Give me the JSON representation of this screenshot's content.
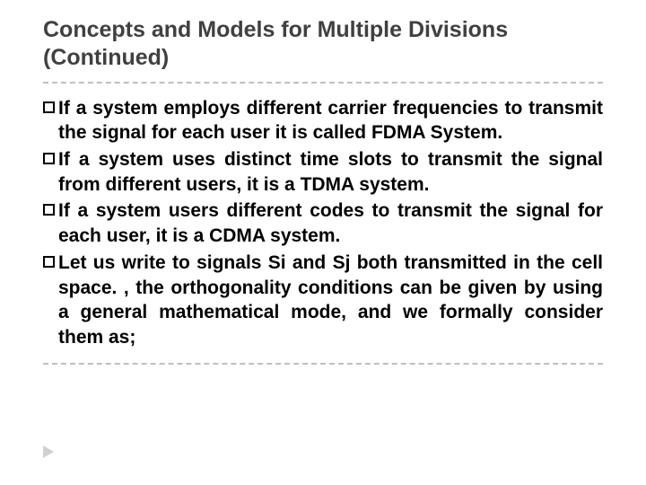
{
  "slide": {
    "title": "Concepts and Models for Multiple Divisions (Continued)",
    "title_color": "#404040",
    "title_fontsize": 25,
    "rule_color": "#bfbfbf",
    "background_color": "#ffffff",
    "body_fontsize": 21,
    "body_color": "#000000",
    "bullet_border_color": "#000000",
    "play_marker_color": "#d0d0d0",
    "bullets": [
      {
        "text": "If a system employs different carrier frequencies to transmit the signal for each user it is called FDMA System."
      },
      {
        "text": "If a system uses distinct time slots to transmit the signal from different users, it is a TDMA system."
      },
      {
        "text": "If a system users different codes to transmit the signal for each user, it is a CDMA system."
      },
      {
        "text": "Let us write to signals Si and Sj both transmitted in the cell space. , the orthogonality conditions can be given by using a general mathematical mode, and we formally consider them as;"
      }
    ]
  }
}
